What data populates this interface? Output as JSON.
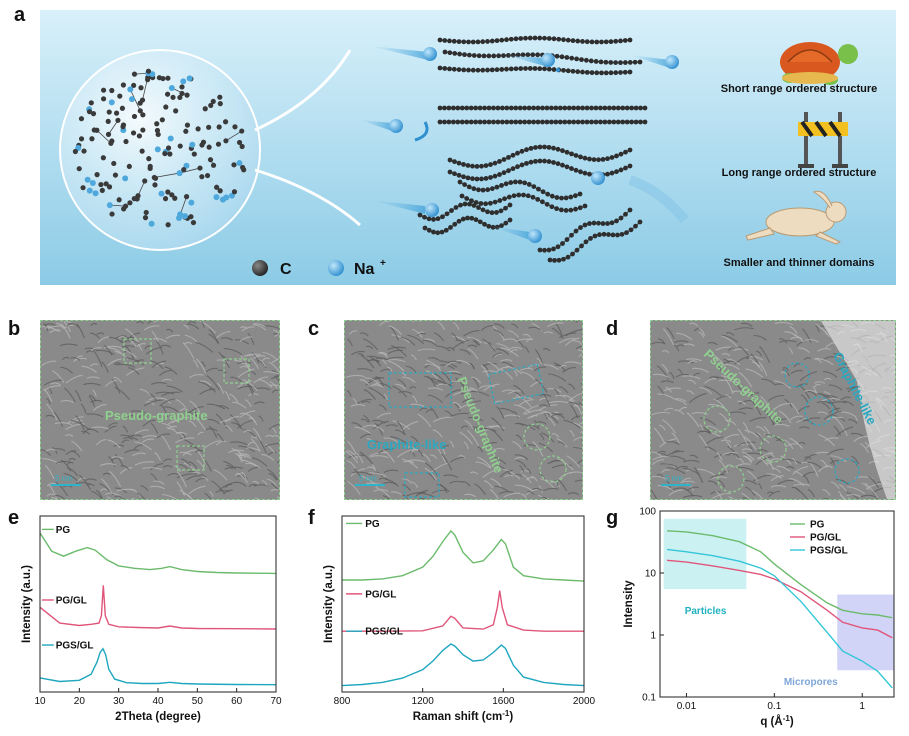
{
  "panels": {
    "a": "a",
    "b": "b",
    "c": "c",
    "d": "d",
    "e": "e",
    "f": "f",
    "g": "g"
  },
  "schematic": {
    "legend_c": "C",
    "legend_na": "Na",
    "legend_na_sup": "+",
    "labels": [
      "Short range ordered structure",
      "Long range ordered structure",
      "Smaller and thinner domains"
    ],
    "colors": {
      "background_top": "#cfeaf6",
      "background_bottom": "#8ccbe6",
      "carbon": "#3a3a3a",
      "sodium": "#3ea3dc"
    }
  },
  "tem": {
    "b": {
      "label": "Pseudo-graphite",
      "scale": "5 nm"
    },
    "c": {
      "label_cyan": "Graphite-like",
      "label_green": "Pseudo-graphite",
      "scale": "5 nm"
    },
    "d": {
      "label_green": "Pseudo-graphite",
      "label_cyan": "Graphite-like",
      "scale": "5 nm"
    }
  },
  "chart_data": [
    {
      "type": "line",
      "panel": "e",
      "xlabel": "2Theta (degree)",
      "ylabel": "Intensity (a.u.)",
      "xlim": [
        10,
        70
      ],
      "xticks": [
        10,
        20,
        30,
        40,
        50,
        60,
        70
      ],
      "series": [
        {
          "name": "PG",
          "color": "#6cbb6c",
          "x": [
            10,
            13,
            16,
            19,
            22,
            24,
            27,
            30,
            34,
            38,
            41,
            43,
            46,
            50,
            55,
            60,
            65,
            70
          ],
          "y": [
            6.3,
            5.55,
            5.35,
            5.55,
            5.7,
            5.6,
            5.2,
            4.95,
            4.85,
            4.8,
            4.85,
            4.92,
            4.8,
            4.72,
            4.68,
            4.66,
            4.65,
            4.64
          ]
        },
        {
          "name": "PG/GL",
          "color": "#e0567a",
          "x": [
            10,
            15,
            20,
            23,
            25,
            25.6,
            26.1,
            26.6,
            27.5,
            30,
            35,
            40,
            43,
            46,
            50,
            60,
            70
          ],
          "y": [
            3.25,
            2.6,
            2.5,
            2.55,
            2.6,
            2.9,
            4.15,
            2.9,
            2.55,
            2.45,
            2.42,
            2.4,
            2.48,
            2.4,
            2.38,
            2.37,
            2.36
          ]
        },
        {
          "name": "PGS/GL",
          "color": "#1fa6bf",
          "x": [
            10,
            15,
            20,
            23,
            24.5,
            25.3,
            26.0,
            26.7,
            27.5,
            29,
            32,
            36,
            40,
            43,
            46,
            50,
            60,
            70
          ],
          "y": [
            0.35,
            0.2,
            0.25,
            0.5,
            1.0,
            1.4,
            1.55,
            1.3,
            0.7,
            0.3,
            0.15,
            0.12,
            0.12,
            0.17,
            0.12,
            0.1,
            0.08,
            0.07
          ]
        }
      ]
    },
    {
      "type": "line",
      "panel": "f",
      "xlabel": "Raman shift (cm",
      "xlabel_sup": "-1",
      "xlabel_end": ")",
      "ylabel": "Intensity (a.u.)",
      "xlim": [
        800,
        2000
      ],
      "xticks": [
        800,
        1200,
        1600,
        2000
      ],
      "series": [
        {
          "name": "PG",
          "color": "#6cbb6c",
          "x": [
            800,
            900,
            1000,
            1100,
            1200,
            1250,
            1300,
            1340,
            1360,
            1400,
            1450,
            1500,
            1550,
            1590,
            1610,
            1650,
            1700,
            1800,
            1900,
            2000
          ],
          "y": [
            5.1,
            5.1,
            5.15,
            5.3,
            5.7,
            6.2,
            6.9,
            7.4,
            7.2,
            6.4,
            5.9,
            6.0,
            6.5,
            7.0,
            6.8,
            5.7,
            5.3,
            5.15,
            5.1,
            5.05
          ]
        },
        {
          "name": "PG/GL",
          "color": "#e0567a",
          "x": [
            800,
            1000,
            1200,
            1300,
            1340,
            1360,
            1400,
            1500,
            1550,
            1570,
            1582,
            1595,
            1620,
            1700,
            1800,
            2000
          ],
          "y": [
            2.7,
            2.7,
            2.72,
            2.95,
            3.4,
            3.3,
            2.85,
            2.8,
            3.0,
            3.8,
            4.6,
            3.8,
            3.0,
            2.75,
            2.7,
            2.7
          ]
        },
        {
          "name": "PGS/GL",
          "color": "#1fa6bf",
          "x": [
            800,
            900,
            1000,
            1100,
            1200,
            1250,
            1300,
            1340,
            1360,
            1400,
            1450,
            1500,
            1550,
            1590,
            1610,
            1650,
            1700,
            1800,
            1900,
            2000
          ],
          "y": [
            0.15,
            0.2,
            0.3,
            0.5,
            0.9,
            1.3,
            1.8,
            2.1,
            2.0,
            1.6,
            1.3,
            1.35,
            1.7,
            2.05,
            1.9,
            1.1,
            0.55,
            0.3,
            0.2,
            0.15
          ]
        }
      ]
    },
    {
      "type": "line",
      "panel": "g",
      "xlabel": "q (Å",
      "xlabel_sup": "-1",
      "xlabel_end": ")",
      "ylabel": "Intensity",
      "xscale": "log",
      "yscale": "log",
      "xlim": [
        0.005,
        2.3
      ],
      "ylim": [
        0.1,
        100
      ],
      "xticks": [
        0.01,
        0.1,
        1
      ],
      "xtick_labels": [
        "0.01",
        "0.1",
        "1"
      ],
      "yticks": [
        0.1,
        1,
        10,
        100
      ],
      "ytick_labels": [
        "0.1",
        "1",
        "10",
        "100"
      ],
      "regions": [
        {
          "label": "Particles",
          "x": [
            0.0055,
            0.048
          ],
          "y": [
            5.5,
            75
          ],
          "color": "#bfeef0",
          "text_color": "#1fb0bf"
        },
        {
          "label": "Micropores",
          "x": [
            0.52,
            2.3
          ],
          "y": [
            0.27,
            4.5
          ],
          "color": "#c6c9f5",
          "text_color": "#7fa6d8"
        }
      ],
      "series": [
        {
          "name": "PG",
          "color": "#6cbb6c",
          "x": [
            0.006,
            0.01,
            0.02,
            0.04,
            0.07,
            0.1,
            0.2,
            0.4,
            0.6,
            1.0,
            1.5,
            2.2
          ],
          "y": [
            48,
            46,
            40,
            32,
            22,
            14,
            6.5,
            3.3,
            2.5,
            2.2,
            2.1,
            1.9
          ]
        },
        {
          "name": "PG/GL",
          "color": "#e0567a",
          "x": [
            0.006,
            0.01,
            0.02,
            0.04,
            0.07,
            0.1,
            0.2,
            0.4,
            0.6,
            1.0,
            1.5,
            2.2
          ],
          "y": [
            16,
            15,
            13,
            11,
            9.5,
            8,
            5,
            2.5,
            1.6,
            1.3,
            1.2,
            0.9
          ]
        },
        {
          "name": "PGS/GL",
          "color": "#34c6d8",
          "x": [
            0.006,
            0.01,
            0.02,
            0.04,
            0.07,
            0.1,
            0.2,
            0.4,
            0.6,
            1.0,
            1.5,
            2.2
          ],
          "y": [
            24,
            22,
            19,
            15.5,
            12,
            9,
            3.5,
            1.1,
            0.55,
            0.38,
            0.26,
            0.14
          ]
        }
      ]
    }
  ]
}
